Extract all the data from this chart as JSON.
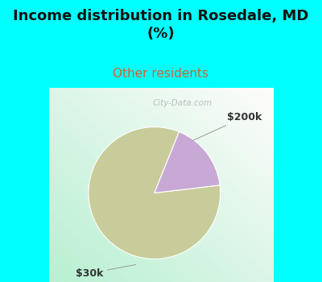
{
  "title": "Income distribution in Rosedale, MD\n(%)",
  "subtitle": "Other residents",
  "title_color": "#111111",
  "subtitle_color": "#cc6633",
  "title_fontsize": 13,
  "subtitle_fontsize": 11,
  "slices": [
    83,
    17
  ],
  "slice_colors": [
    "#c8cc9a",
    "#c8a8d4"
  ],
  "bg_color": "#00ffff",
  "chart_bg_left": "#b8eecf",
  "chart_bg_right": "#e8f8ee",
  "watermark": "City-Data.com",
  "startangle": 68,
  "label_200k": "$200k",
  "label_30k": "$30k",
  "label_fontsize": 9
}
